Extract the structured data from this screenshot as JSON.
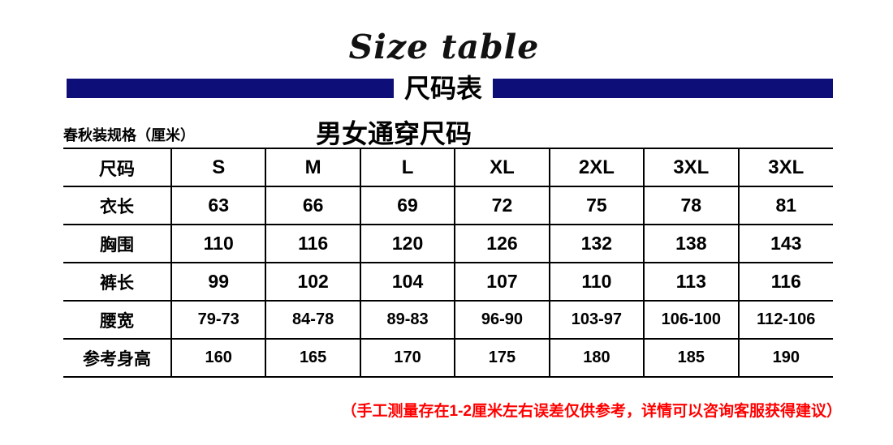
{
  "header": {
    "english_title": "Size table",
    "banner_title": "尺码表"
  },
  "subheader": {
    "spec_label": "春秋装规格（厘米）",
    "table_title": "男女通穿尺码"
  },
  "chart_data": {
    "type": "table",
    "title": "男女通穿尺码",
    "unit": "厘米",
    "columns": [
      "尺码",
      "S",
      "M",
      "L",
      "XL",
      "2XL",
      "3XL",
      "3XL"
    ],
    "rows": [
      {
        "label": "衣长",
        "values": [
          "63",
          "66",
          "69",
          "72",
          "75",
          "78",
          "81"
        ]
      },
      {
        "label": "胸围",
        "values": [
          "110",
          "116",
          "120",
          "126",
          "132",
          "138",
          "143"
        ]
      },
      {
        "label": "裤长",
        "values": [
          "99",
          "102",
          "104",
          "107",
          "110",
          "113",
          "116"
        ]
      },
      {
        "label": "腰宽",
        "values": [
          "79-73",
          "84-78",
          "89-83",
          "96-90",
          "103-97",
          "106-100",
          "112-106"
        ]
      },
      {
        "label": "参考身高",
        "values": [
          "160",
          "165",
          "170",
          "175",
          "180",
          "185",
          "190"
        ]
      }
    ]
  },
  "footer": {
    "note": "（手工测量存在1-2厘米左右误差仅供参考，详情可以咨询客服获得建议）"
  },
  "colors": {
    "banner_navy": "#0E0E78",
    "note_red": "#FF0000",
    "text_black": "#000000",
    "background": "#FFFFFF"
  }
}
